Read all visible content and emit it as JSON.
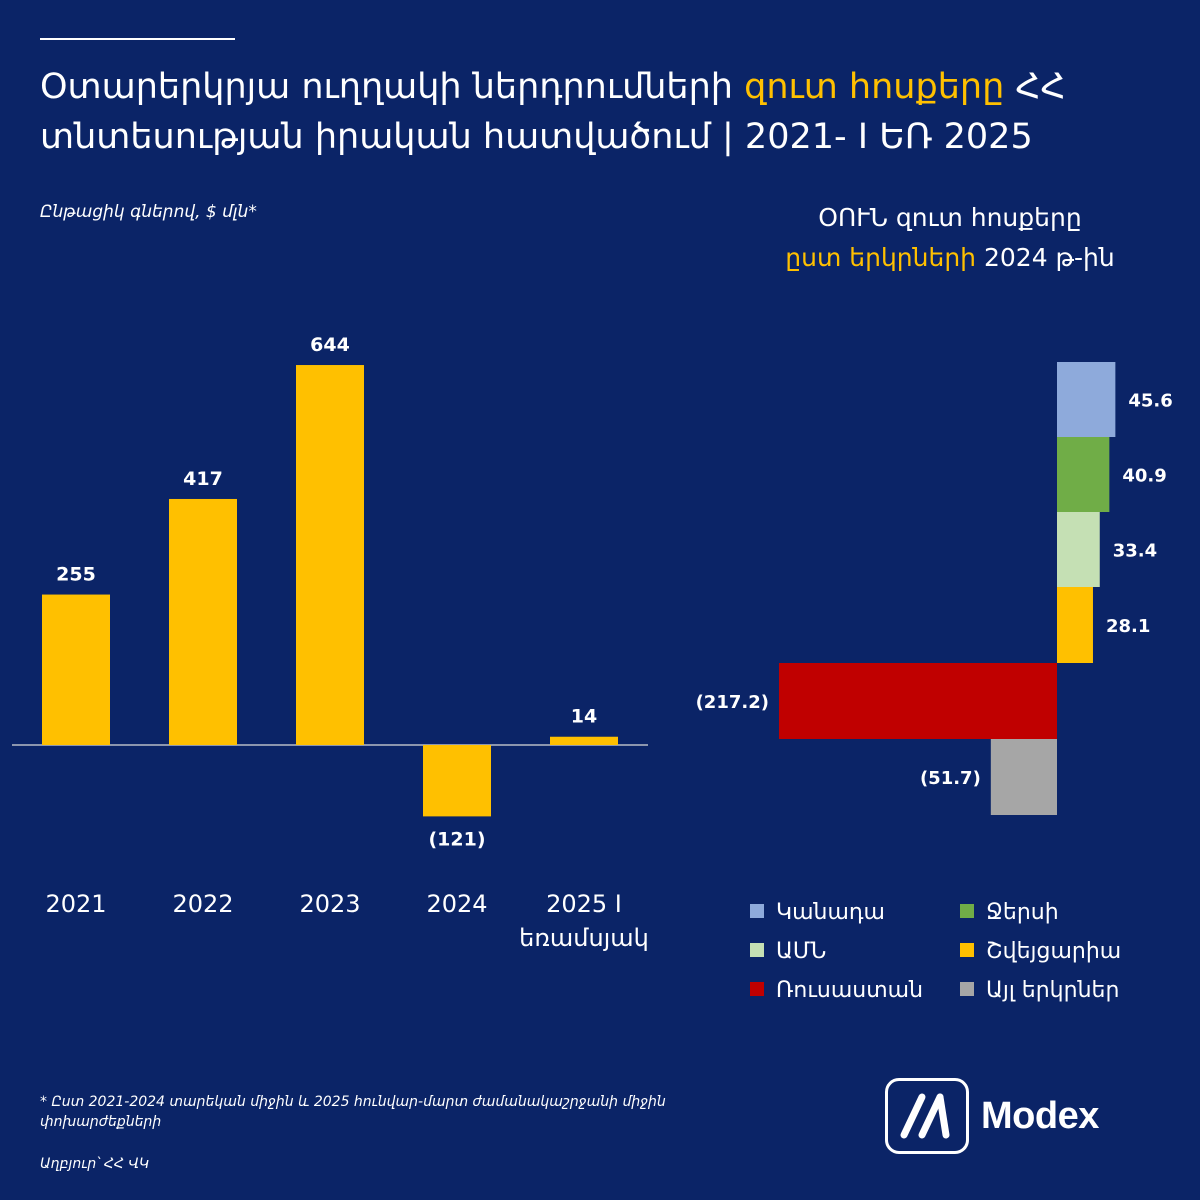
{
  "title": {
    "part1": "Օտարերկրյա ուղղակի ներդրումների ",
    "accent": "զուտ հոսքերը",
    "part2": " ՀՀ տնտեսության իրական հատվածում | 2021- I ԵՌ 2025"
  },
  "left_subtitle": "Ընթացիկ գներով, $ մլն*",
  "right_title": {
    "line1": "ՕՈՒՆ զուտ հոսքերը",
    "line2_accent": "ըստ երկրների",
    "line2_rest": " 2024 թ-ին"
  },
  "chart_data": [
    {
      "type": "bar",
      "title": "",
      "categories": [
        "2021",
        "2022",
        "2023",
        "2024",
        "2025 I եռամսյակ"
      ],
      "category_lines": [
        [
          "2021"
        ],
        [
          "2022"
        ],
        [
          "2023"
        ],
        [
          "2024"
        ],
        [
          "2025 I",
          "եռամսյակ"
        ]
      ],
      "values": [
        255,
        417,
        644,
        -121,
        14
      ],
      "value_labels": [
        "255",
        "417",
        "644",
        "(121)",
        "14"
      ],
      "color": "#ffc000",
      "ylim": [
        -121,
        644
      ],
      "grid": false,
      "baseline": true
    },
    {
      "type": "bar",
      "orientation": "horizontal",
      "title": "",
      "categories": [
        "Կանադա",
        "Ջերսի",
        "ԱՄՆ",
        "Շվեյցարիա",
        "Ռուսաստան",
        "Այլ երկրներ"
      ],
      "values": [
        45.6,
        40.9,
        33.4,
        28.1,
        -217.2,
        -51.7
      ],
      "value_labels": [
        "45.6",
        "40.9",
        "33.4",
        "28.1",
        "(217.2)",
        "(51.7)"
      ],
      "colors": [
        "#8eaadb",
        "#70ad47",
        "#c5e0b4",
        "#ffc000",
        "#c00000",
        "#a6a6a6"
      ],
      "xlim": [
        -217.2,
        45.6
      ],
      "legend_position": "bottom"
    }
  ],
  "legend": {
    "items": [
      {
        "label": "Կանադա",
        "color": "#8eaadb"
      },
      {
        "label": "Ջերսի",
        "color": "#70ad47"
      },
      {
        "label": "ԱՄՆ",
        "color": "#c5e0b4"
      },
      {
        "label": "Շվեյցարիա",
        "color": "#ffc000"
      },
      {
        "label": "Ռուսաստան",
        "color": "#c00000"
      },
      {
        "label": "Այլ երկրներ",
        "color": "#a6a6a6"
      }
    ]
  },
  "footnote": "* Ըստ 2021-2024 տարեկան միջին և  2025 հունվար-մարտ ժամանակաշրջանի միջին փոխարժեքների",
  "source": "Աղբյուր՝ ՀՀ ՎԿ",
  "logo": {
    "text": "Modex",
    "icon": "modex-logo-icon"
  },
  "colors": {
    "background": "#0b2467",
    "accent": "#ffc000",
    "text": "#ffffff"
  }
}
